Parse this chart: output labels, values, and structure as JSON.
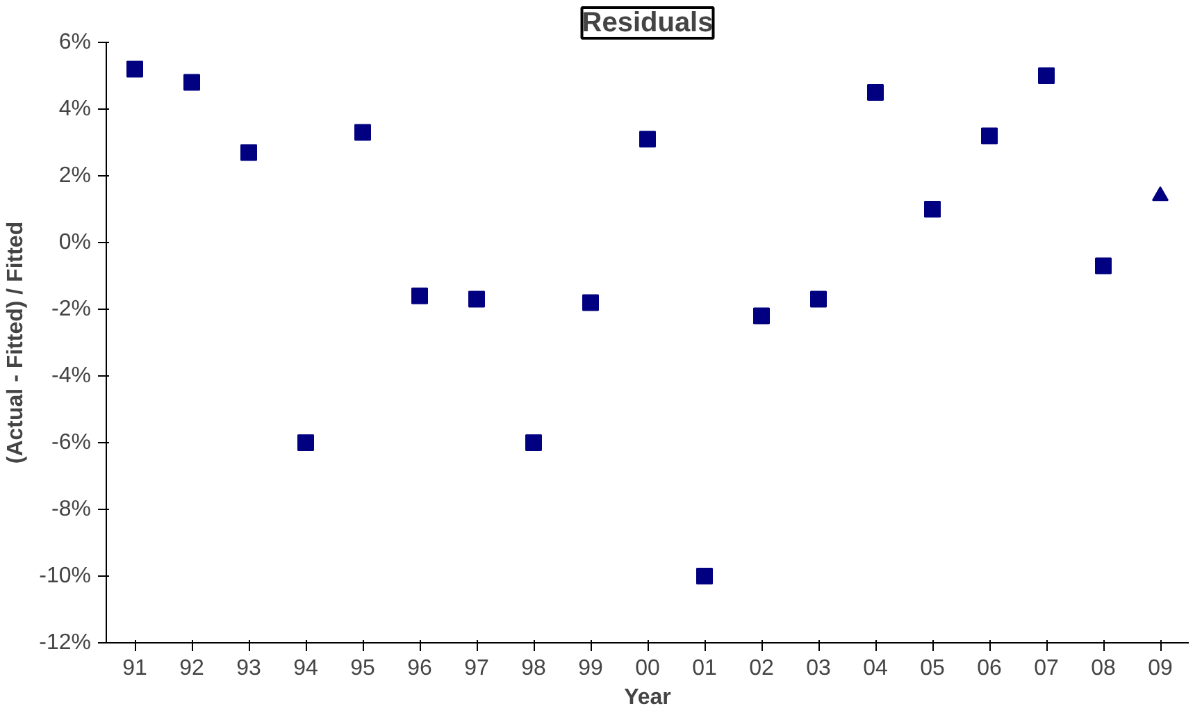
{
  "chart_data": {
    "type": "scatter",
    "title": "Residuals",
    "xlabel": "Year",
    "ylabel": "(Actual - Fitted) / Fitted",
    "categories": [
      "91",
      "92",
      "93",
      "94",
      "95",
      "96",
      "97",
      "98",
      "99",
      "00",
      "01",
      "02",
      "03",
      "04",
      "05",
      "06",
      "07",
      "08",
      "09"
    ],
    "series": [
      {
        "color": "#000080",
        "marker": "square",
        "values": [
          5.2,
          4.8,
          2.7,
          -6.0,
          3.3,
          -1.6,
          -1.7,
          -6.0,
          -1.8,
          3.1,
          -10.0,
          -2.2,
          -1.7,
          4.5,
          1.0,
          3.2,
          5.0,
          -0.7,
          null
        ]
      },
      {
        "color": "#000080",
        "marker": "triangle",
        "values": [
          null,
          null,
          null,
          null,
          null,
          null,
          null,
          null,
          null,
          null,
          null,
          null,
          null,
          null,
          null,
          null,
          null,
          null,
          1.4
        ]
      }
    ],
    "ylim": [
      -12,
      6
    ],
    "yticks": [
      {
        "value": -12,
        "label": "-12%"
      },
      {
        "value": -10,
        "label": "-10%"
      },
      {
        "value": -8,
        "label": "-8%"
      },
      {
        "value": -6,
        "label": "-6%"
      },
      {
        "value": -4,
        "label": "-4%"
      },
      {
        "value": -2,
        "label": "-2%"
      },
      {
        "value": 0,
        "label": "0%"
      },
      {
        "value": 2,
        "label": "2%"
      },
      {
        "value": 4,
        "label": "4%"
      },
      {
        "value": 6,
        "label": "6%"
      }
    ],
    "grid": false
  }
}
